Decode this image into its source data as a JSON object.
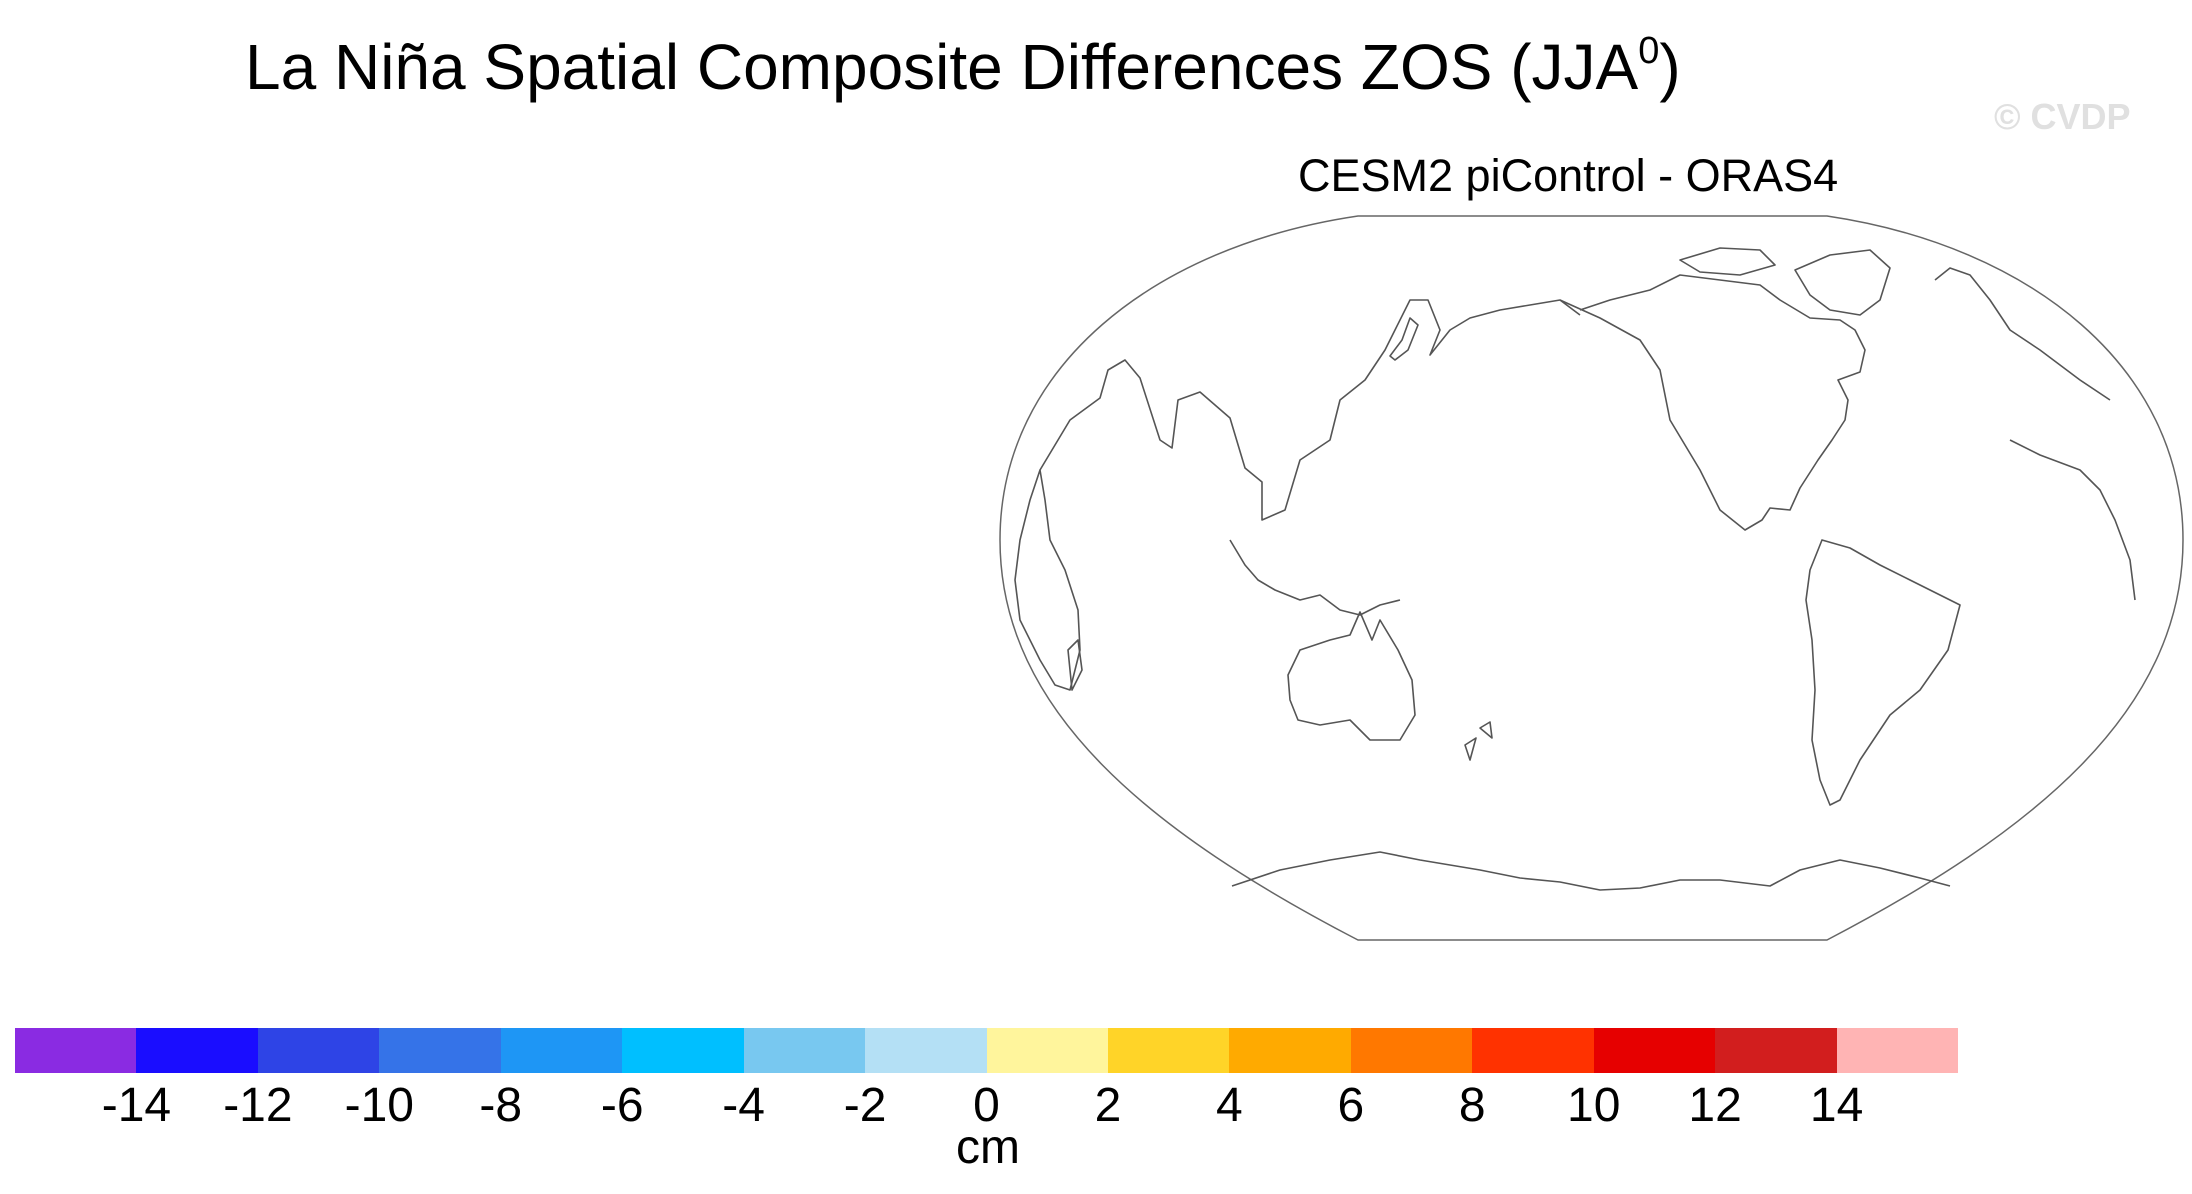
{
  "title": "La Niña Spatial Composite Differences ZOS (JJA",
  "title_superscript": "0",
  "title_close": ")",
  "watermark": "© CVDP",
  "panel_label": "CESM2 piControl - ORAS4",
  "map": {
    "projection": "robinson-like",
    "center_longitude": 180,
    "fill": "none",
    "coastline_color": "#555555"
  },
  "colorbar": {
    "units": "cm",
    "swatch_colors": [
      "#8a2be2",
      "#1a0dff",
      "#2e44e6",
      "#3573e8",
      "#1e96f5",
      "#00bfff",
      "#78c8f0",
      "#b4e0f5",
      "#fff59c",
      "#ffd428",
      "#ffaa00",
      "#ff7800",
      "#ff3200",
      "#e60000",
      "#d21e1e",
      "#ffb4b4"
    ],
    "tick_labels": [
      "-14",
      "-12",
      "-10",
      "-8",
      "-6",
      "-4",
      "-2",
      "0",
      "2",
      "4",
      "6",
      "8",
      "10",
      "12",
      "14"
    ]
  }
}
